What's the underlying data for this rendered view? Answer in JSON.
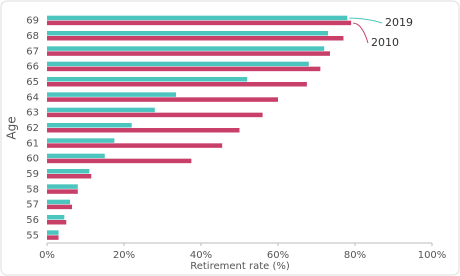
{
  "chart_data": {
    "type": "hbar",
    "xlabel": "Retirement rate (%)",
    "ylabel": "Age",
    "categories": [
      "69",
      "68",
      "67",
      "66",
      "65",
      "64",
      "63",
      "62",
      "61",
      "60",
      "59",
      "58",
      "57",
      "56",
      "55"
    ],
    "series": [
      {
        "name": "2019",
        "color": "#4cc5bf",
        "values": [
          78,
          73,
          72,
          68,
          52,
          33.5,
          28,
          22,
          17.5,
          15,
          11,
          8,
          6,
          4.5,
          3
        ]
      },
      {
        "name": "2010",
        "color": "#c8406a",
        "values": [
          79,
          77,
          73.5,
          71,
          67.5,
          60,
          56,
          50,
          45.5,
          37.5,
          11.5,
          8,
          6.5,
          5,
          3
        ]
      }
    ],
    "xlim": [
      0,
      100
    ],
    "xticks": [
      {
        "value": 0,
        "label": "0%"
      },
      {
        "value": 20,
        "label": "20%"
      },
      {
        "value": 40,
        "label": "40%"
      },
      {
        "value": 60,
        "label": "60%"
      },
      {
        "value": 80,
        "label": "80%"
      },
      {
        "value": 100,
        "label": "100%"
      }
    ],
    "grid": false
  }
}
